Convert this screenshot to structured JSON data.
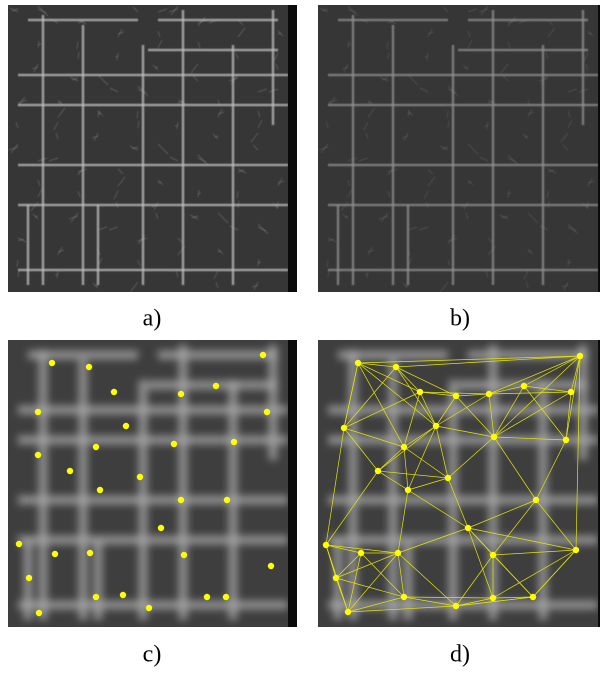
{
  "captions": [
    "a)",
    "b)",
    "c)",
    "d)"
  ]
}
